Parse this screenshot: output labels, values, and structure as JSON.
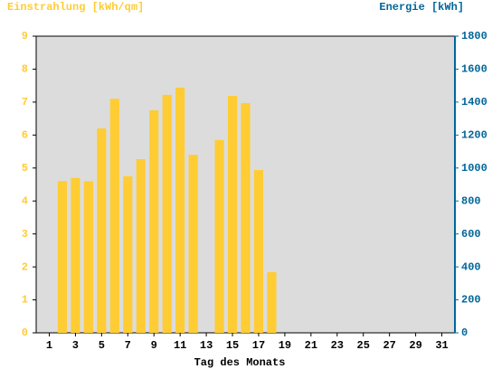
{
  "chart_data": {
    "type": "bar",
    "title_left": "Einstrahlung [kWh/qm]",
    "title_right": "Energie [kWh]",
    "x_label": "Tag des Monats",
    "x": [
      1,
      2,
      3,
      4,
      5,
      6,
      7,
      8,
      9,
      10,
      11,
      12,
      13,
      14,
      15,
      16,
      17,
      18,
      19,
      20,
      21,
      22,
      23,
      24,
      25,
      26,
      27,
      28,
      29,
      30,
      31
    ],
    "series": [
      {
        "name": "Einstrahlung",
        "color": "#ffcc33",
        "values": [
          null,
          4.6,
          4.7,
          4.6,
          6.2,
          7.1,
          4.75,
          5.27,
          6.75,
          7.22,
          7.44,
          5.4,
          null,
          5.85,
          7.19,
          6.97,
          4.94,
          1.84,
          null,
          null,
          null,
          null,
          null,
          null,
          null,
          null,
          null,
          null,
          null,
          null,
          null
        ]
      }
    ],
    "xlim": [
      0,
      32
    ],
    "xticks": [
      1,
      3,
      5,
      7,
      9,
      11,
      13,
      15,
      17,
      19,
      21,
      23,
      25,
      27,
      29,
      31
    ],
    "ylim": [
      0,
      9
    ],
    "yticks": [
      0,
      1,
      2,
      3,
      4,
      5,
      6,
      7,
      8,
      9
    ],
    "y2lim": [
      0,
      1800
    ],
    "y2ticks": [
      0,
      200,
      400,
      600,
      800,
      1000,
      1200,
      1400,
      1600,
      1800
    ],
    "left_color": "#ffcc33",
    "right_color": "#006699",
    "plot_background": "#dcdcdc",
    "grid": false
  }
}
